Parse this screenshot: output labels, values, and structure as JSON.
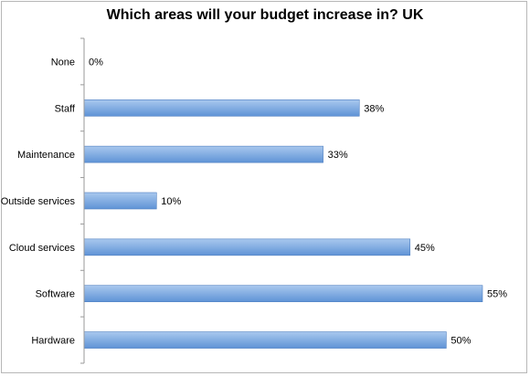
{
  "chart_data": {
    "type": "bar",
    "orientation": "horizontal",
    "title": "Which areas will your budget increase in? UK",
    "categories": [
      "None",
      "Staff",
      "Maintenance",
      "Outside services",
      "Cloud services",
      "Software",
      "Hardware"
    ],
    "values": [
      0,
      38,
      33,
      10,
      45,
      55,
      50
    ],
    "value_labels": [
      "0%",
      "38%",
      "33%",
      "10%",
      "45%",
      "55%",
      "50%"
    ],
    "xlim": [
      0,
      55
    ],
    "grid": false,
    "legend": "none",
    "colors": {
      "bar_top": "#a9c8ee",
      "bar_bottom": "#5f93d6",
      "bar_stroke": "#4f7fc0",
      "axis": "#999999"
    }
  }
}
